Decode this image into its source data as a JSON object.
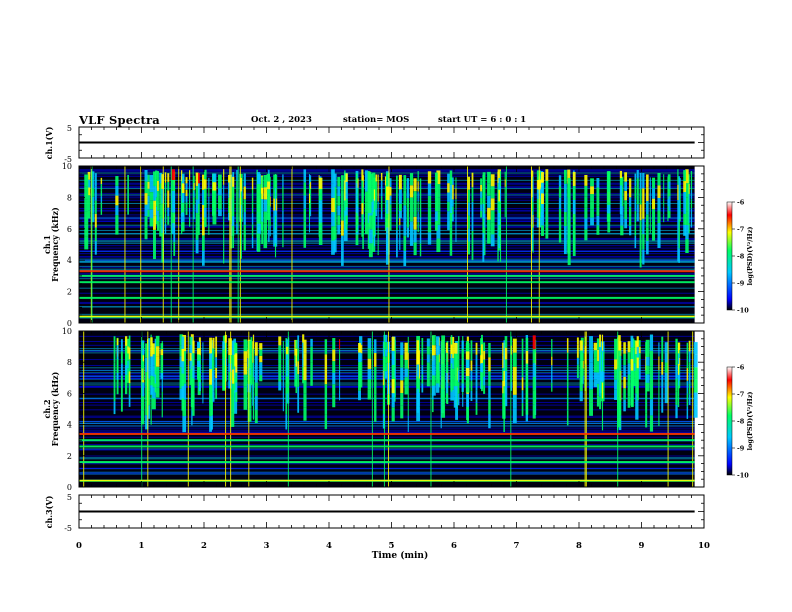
{
  "header": {
    "title": "VLF Spectra",
    "date": "Oct. 2 , 2023",
    "station": "station= MOS",
    "start_ut": "start  UT =   6 : 0  : 1"
  },
  "colors": {
    "frame": "#000000",
    "colormap": [
      "#000000",
      "#0000ff",
      "#00c8ff",
      "#00ff66",
      "#ffff00",
      "#ff0000",
      "#ffffff"
    ]
  },
  "chart_data": [
    {
      "type": "line",
      "panel": "ch1",
      "ylabel": "ch.1(V)",
      "ylim": [
        -5,
        5
      ],
      "yticks": [
        "5",
        "-5"
      ],
      "xlim": [
        0,
        10
      ],
      "series": [
        {
          "x": [
            0,
            9.85
          ],
          "y": [
            0,
            0
          ]
        }
      ]
    },
    {
      "type": "heatmap",
      "panel": "ch1",
      "ylabel_1": "ch.1",
      "ylabel_2": "Frequency (kHz)",
      "ylim": [
        0,
        10
      ],
      "yticks": [
        "0",
        "2",
        "4",
        "6",
        "8",
        "10"
      ],
      "xlim": [
        0,
        10
      ],
      "data_extent_min": 9.85,
      "colorbar": {
        "label": "log(PSD)(V²/Hz)",
        "range": [
          -10,
          -6
        ],
        "ticks": [
          "-6",
          "-7",
          "-8",
          "-9",
          "-10"
        ]
      },
      "intense_bands_kHz": [
        0.4,
        1.6,
        2.6,
        3.0,
        3.3
      ]
    },
    {
      "type": "heatmap",
      "panel": "ch2",
      "ylabel_1": "ch.2",
      "ylabel_2": "Frequency (kHz)",
      "ylim": [
        0,
        10
      ],
      "yticks": [
        "0",
        "2",
        "4",
        "6",
        "8",
        "10"
      ],
      "xlim": [
        0,
        10
      ],
      "data_extent_min": 9.85,
      "colorbar": {
        "label": "log(PSD)(V²/Hz)",
        "range": [
          -10,
          -6
        ],
        "ticks": [
          "-6",
          "-7",
          "-8",
          "-9",
          "-10"
        ]
      },
      "intense_bands_kHz": [
        0.4,
        1.6,
        2.6,
        3.0,
        3.4
      ]
    },
    {
      "type": "line",
      "panel": "ch3",
      "ylabel": "ch.3(V)",
      "ylim": [
        -5,
        5
      ],
      "yticks": [
        "5",
        "-5"
      ],
      "xlim": [
        0,
        10
      ],
      "xlabel": "Time (min)",
      "xticks": [
        "0",
        "1",
        "2",
        "3",
        "4",
        "5",
        "6",
        "7",
        "8",
        "9",
        "10"
      ],
      "series": [
        {
          "x": [
            0,
            9.85
          ],
          "y": [
            0,
            0
          ]
        }
      ]
    }
  ]
}
